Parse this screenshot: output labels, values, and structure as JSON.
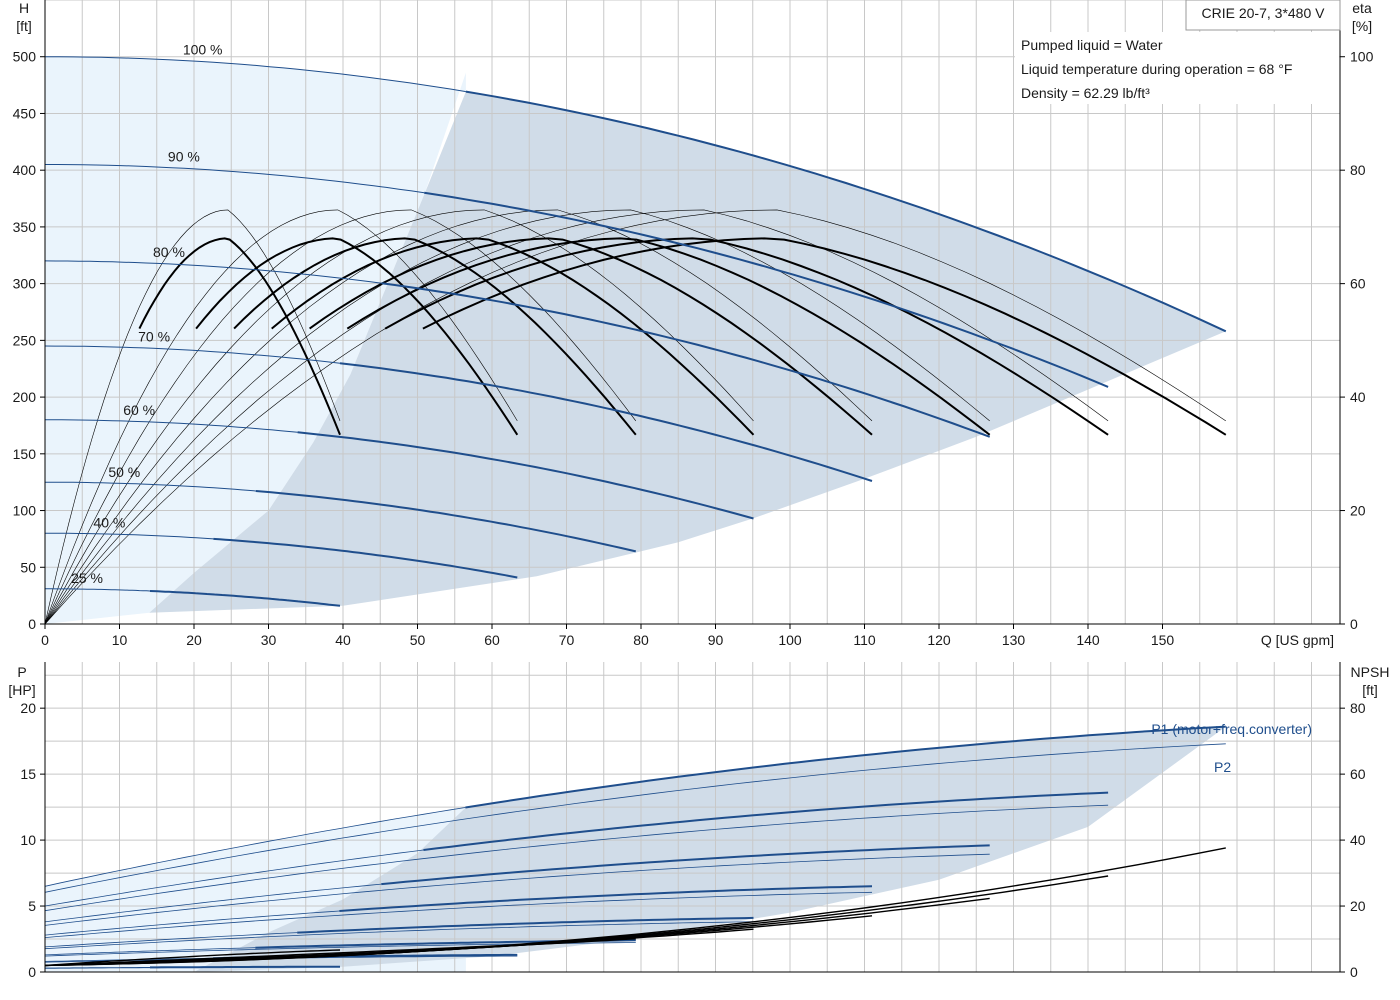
{
  "legend_box": {
    "model": "CRIE 20-7, 3*480 V"
  },
  "info": {
    "pumped_liquid": "Pumped liquid = Water",
    "liquid_temperature": "Liquid temperature during operation = 68 °F",
    "density": "Density = 62.29 lb/ft³"
  },
  "colors": {
    "blue_line": "#1f4e8c",
    "shade_dark": "#d0dce8",
    "shade_light": "#eaf4fc",
    "grid": "#c8c8c8",
    "black_line": "#000000"
  },
  "chart_data": [
    {
      "type": "line",
      "id": "head_chart",
      "left_axis": {
        "label_top": "H",
        "label_unit": "[ft]",
        "range": [
          0,
          550
        ],
        "ticks": [
          0,
          50,
          100,
          150,
          200,
          250,
          300,
          350,
          400,
          450,
          500
        ]
      },
      "right_axis": {
        "label_top": "eta",
        "label_unit": "[%]",
        "range": [
          0,
          110
        ],
        "ticks": [
          0,
          20,
          40,
          60,
          80,
          100
        ]
      },
      "x_axis": {
        "label": "Q [US gpm]",
        "range": [
          0,
          170
        ],
        "ticks": [
          0,
          10,
          20,
          30,
          40,
          50,
          60,
          70,
          80,
          90,
          100,
          110,
          120,
          130,
          140,
          150
        ]
      },
      "grid": true,
      "speed_curves": [
        {
          "speed": "100 %",
          "h0": 500,
          "qmax": 158.5,
          "hend": 258,
          "qcut": 56.5
        },
        {
          "speed": "90 %",
          "h0": 405,
          "qmax": 142.7,
          "hend": 209,
          "qcut": 50.9
        },
        {
          "speed": "80 %",
          "h0": 320,
          "qmax": 126.8,
          "hend": 165,
          "qcut": 45.2
        },
        {
          "speed": "70 %",
          "h0": 245,
          "qmax": 111,
          "hend": 126,
          "qcut": 39.6
        },
        {
          "speed": "60 %",
          "h0": 180,
          "qmax": 95.1,
          "hend": 93,
          "qcut": 33.9
        },
        {
          "speed": "50 %",
          "h0": 125,
          "qmax": 79.3,
          "hend": 64,
          "qcut": 28.3
        },
        {
          "speed": "40 %",
          "h0": 80,
          "qmax": 63.4,
          "hend": 41,
          "qcut": 22.6
        },
        {
          "speed": "25 %",
          "h0": 31,
          "qmax": 39.6,
          "hend": 16,
          "qcut": 14.1
        }
      ]
    },
    {
      "type": "line",
      "id": "power_chart",
      "left_axis": {
        "label_top": "P",
        "label_unit": "[HP]",
        "range": [
          0,
          23.5
        ],
        "ticks": [
          0,
          5,
          10,
          15,
          20
        ]
      },
      "right_axis": {
        "label_top": "NPSH",
        "label_unit": "[ft]",
        "range": [
          0,
          94
        ],
        "ticks": [
          0,
          20,
          40,
          60,
          80
        ]
      },
      "x_axis": {
        "range": [
          0,
          170
        ]
      },
      "grid": true,
      "series_labels": {
        "p1": "P1 (motor+freq.converter)",
        "p2": "P2"
      },
      "p1_curves": [
        {
          "p0": 6.5,
          "qmax": 158.5,
          "pend": 18.6
        },
        {
          "p0": 5.0,
          "qmax": 142.7,
          "pend": 13.6
        },
        {
          "p0": 3.8,
          "qmax": 126.8,
          "pend": 9.6
        },
        {
          "p0": 2.8,
          "qmax": 111,
          "pend": 6.5
        },
        {
          "p0": 1.9,
          "qmax": 95.1,
          "pend": 4.1
        },
        {
          "p0": 1.3,
          "qmax": 79.3,
          "pend": 2.4
        },
        {
          "p0": 0.8,
          "qmax": 63.4,
          "pend": 1.3
        },
        {
          "p0": 0.3,
          "qmax": 39.6,
          "pend": 0.4
        }
      ]
    }
  ]
}
